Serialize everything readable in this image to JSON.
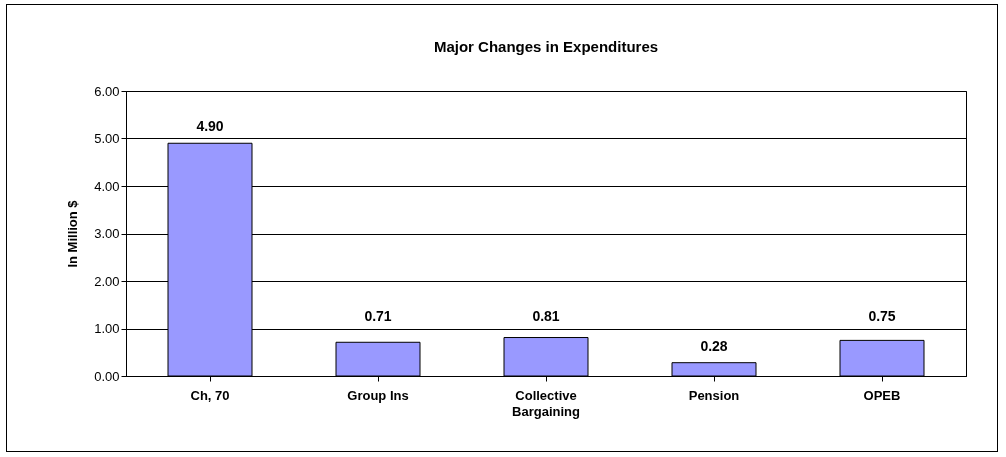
{
  "chart_data": {
    "type": "bar",
    "title": "Major Changes in Expenditures",
    "ylabel": "In Million $",
    "categories": [
      "Ch, 70",
      "Group Ins",
      "Collective Bargaining",
      "Pension",
      "OPEB"
    ],
    "values": [
      4.9,
      0.71,
      0.81,
      0.28,
      0.75
    ],
    "value_labels": [
      "4.90",
      "0.71",
      "0.81",
      "0.28",
      "0.75"
    ],
    "color": "#9999ff",
    "ylim": [
      0,
      6
    ],
    "yticks": [
      {
        "value": 0,
        "label": "0.00"
      },
      {
        "value": 1,
        "label": "1.00"
      },
      {
        "value": 2,
        "label": "2.00"
      },
      {
        "value": 3,
        "label": "3.00"
      },
      {
        "value": 4,
        "label": "4.00"
      },
      {
        "value": 5,
        "label": "5.00"
      },
      {
        "value": 6,
        "label": "6.00"
      }
    ],
    "grid": "y"
  }
}
